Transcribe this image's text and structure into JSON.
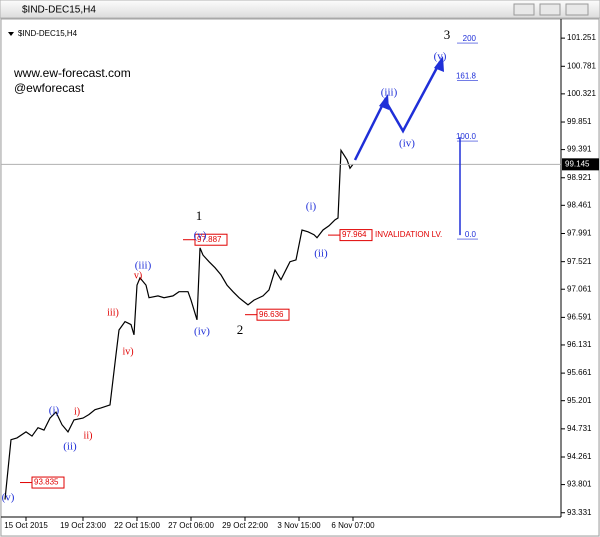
{
  "chart_data": {
    "type": "line",
    "title": "$IND-DEC15,H4",
    "watermark": [
      "www.ew-forecast.com",
      "@ewforecast"
    ],
    "x": [
      0,
      1,
      2,
      4,
      7,
      9,
      11,
      13,
      15,
      17,
      19,
      21,
      23,
      26,
      28,
      30,
      32,
      35,
      37,
      38,
      40,
      42,
      43,
      44,
      45,
      47,
      48,
      51,
      53,
      56,
      58,
      61,
      62,
      64,
      65,
      66,
      68,
      70,
      72,
      74,
      76,
      78,
      79,
      81,
      83,
      86,
      88,
      90,
      92,
      94,
      95,
      97,
      99,
      101,
      103,
      104,
      106,
      108,
      110,
      111,
      112,
      114,
      115,
      116
    ],
    "values": [
      93.55,
      94.05,
      94.55,
      94.58,
      94.68,
      94.61,
      94.75,
      94.71,
      94.91,
      95.01,
      94.8,
      94.68,
      94.88,
      94.91,
      94.97,
      95.05,
      95.08,
      95.13,
      95.97,
      96.38,
      96.52,
      96.47,
      96.3,
      97.13,
      97.25,
      97.13,
      96.92,
      96.95,
      96.92,
      96.95,
      97.02,
      97.02,
      96.88,
      96.55,
      97.75,
      97.63,
      97.52,
      97.42,
      97.3,
      97.13,
      97.02,
      96.92,
      96.88,
      96.8,
      96.88,
      96.95,
      97.05,
      97.38,
      97.22,
      97.42,
      97.52,
      97.55,
      98.05,
      98.02,
      97.97,
      97.92,
      98.05,
      98.12,
      98.22,
      98.25,
      99.38,
      99.22,
      99.08,
      99.145
    ],
    "color": "#000000",
    "xlim": [
      0,
      185
    ],
    "xticks": [
      {
        "value": 7,
        "label": "15 Oct 2015"
      },
      {
        "value": 26,
        "label": "19 Oct 23:00"
      },
      {
        "value": 44,
        "label": "22 Oct 15:00"
      },
      {
        "value": 62,
        "label": "27 Oct 06:00"
      },
      {
        "value": 80,
        "label": "29 Oct 22:00"
      },
      {
        "value": 98,
        "label": "3 Nov 15:00"
      },
      {
        "value": 116,
        "label": "6 Nov 07:00"
      }
    ],
    "ylim": [
      93.26,
      101.42
    ],
    "yticks": [
      101.251,
      100.781,
      100.321,
      99.851,
      99.391,
      98.921,
      98.461,
      97.991,
      97.521,
      97.061,
      96.591,
      96.131,
      95.661,
      95.201,
      94.731,
      94.261,
      93.801,
      93.331
    ],
    "current_price": 99.145,
    "price_labels": [
      97.887,
      96.636,
      93.835,
      97.964
    ],
    "invalidation": "INVALIDATION LV.",
    "fib_levels": [
      200,
      161.8,
      {
        "value": 100,
        "label": "100.0"
      },
      {
        "value": 0,
        "label": "0.0"
      }
    ],
    "major_waves": [
      "1",
      "2",
      "3"
    ],
    "minor_waves": [
      "(i)",
      "(ii)",
      "(iii)",
      "(iv)",
      "(v)",
      "(i)",
      "(ii)",
      "(iii)",
      "(iv)",
      "(v)",
      "(v)"
    ],
    "sub_waves": [
      "i)",
      "ii)",
      "iii)",
      "iv)",
      "v)"
    ]
  }
}
